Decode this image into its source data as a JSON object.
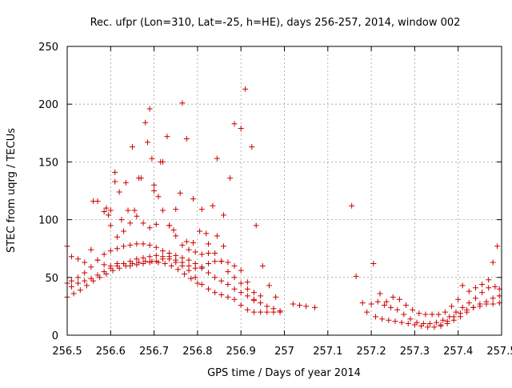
{
  "chart_data": {
    "type": "scatter",
    "title": "Rec. ufpr (Lon=310, Lat=-25, h=HE), days 256-257, 2014, window 002",
    "xlabel": "GPS time / Days of year 2014",
    "ylabel": "STEC from uqrg / TECUs",
    "xlim": [
      256.5,
      257.5
    ],
    "ylim": [
      0,
      250
    ],
    "xticks": [
      256.5,
      256.6,
      256.7,
      256.8,
      256.9,
      257,
      257.1,
      257.2,
      257.3,
      257.4,
      257.5
    ],
    "xtick_labels": [
      "256.5",
      "256.6",
      "256.7",
      "256.8",
      "256.9",
      "257",
      "257.1",
      "257.2",
      "257.3",
      "257.4",
      "257.5"
    ],
    "yticks": [
      0,
      50,
      100,
      150,
      200,
      250
    ],
    "ytick_labels": [
      "0",
      "50",
      "100",
      "150",
      "200",
      "250"
    ],
    "grid": true,
    "legend": "none",
    "marker": "plus",
    "color": "#cc0000",
    "series": [
      {
        "values": [
          [
            256.5,
            77
          ],
          [
            256.51,
            68
          ],
          [
            256.525,
            66
          ],
          [
            256.54,
            63
          ],
          [
            256.555,
            74
          ],
          [
            256.57,
            65
          ],
          [
            256.585,
            61
          ],
          [
            256.6,
            60
          ],
          [
            256.615,
            62
          ],
          [
            256.63,
            62
          ],
          [
            256.645,
            60
          ],
          [
            256.66,
            61
          ],
          [
            256.675,
            62
          ],
          [
            256.69,
            63
          ],
          [
            256.705,
            64
          ],
          [
            256.72,
            66
          ],
          [
            256.735,
            68
          ],
          [
            256.75,
            65
          ],
          [
            256.765,
            63
          ],
          [
            256.78,
            60
          ],
          [
            256.795,
            58
          ],
          [
            256.81,
            59
          ],
          [
            256.825,
            62
          ],
          [
            256.84,
            64
          ],
          [
            256.855,
            64
          ],
          [
            256.87,
            63
          ],
          [
            256.885,
            60
          ],
          [
            256.9,
            56
          ],
          [
            256.915,
            46
          ],
          [
            256.93,
            30
          ]
        ]
      },
      {
        "values": [
          [
            256.5,
            45
          ],
          [
            256.51,
            42
          ],
          [
            256.525,
            45
          ],
          [
            256.54,
            47
          ],
          [
            256.555,
            49
          ],
          [
            256.57,
            52
          ],
          [
            256.585,
            55
          ],
          [
            256.6,
            58
          ],
          [
            256.615,
            60
          ],
          [
            256.63,
            62
          ],
          [
            256.645,
            64
          ],
          [
            256.66,
            66
          ],
          [
            256.675,
            67
          ],
          [
            256.69,
            68
          ],
          [
            256.705,
            69
          ],
          [
            256.72,
            68
          ],
          [
            256.735,
            66
          ],
          [
            256.75,
            63
          ],
          [
            256.765,
            60
          ],
          [
            256.78,
            56
          ],
          [
            256.795,
            50
          ],
          [
            256.81,
            44
          ],
          [
            256.825,
            40
          ],
          [
            256.84,
            37
          ],
          [
            256.855,
            35
          ],
          [
            256.87,
            33
          ],
          [
            256.885,
            31
          ],
          [
            256.9,
            26
          ]
        ]
      },
      {
        "values": [
          [
            256.5,
            33
          ],
          [
            256.515,
            36
          ],
          [
            256.53,
            39
          ],
          [
            256.545,
            43
          ],
          [
            256.56,
            47
          ],
          [
            256.575,
            50
          ],
          [
            256.59,
            53
          ],
          [
            256.605,
            56
          ],
          [
            256.62,
            58
          ],
          [
            256.635,
            60
          ],
          [
            256.65,
            62
          ],
          [
            256.665,
            63
          ],
          [
            256.68,
            64
          ],
          [
            256.695,
            64
          ],
          [
            256.71,
            63
          ],
          [
            256.725,
            62
          ],
          [
            256.74,
            60
          ],
          [
            256.755,
            57
          ],
          [
            256.77,
            53
          ],
          [
            256.785,
            49
          ],
          [
            256.8,
            45
          ]
        ]
      },
      {
        "values": [
          [
            256.51,
            47
          ],
          [
            256.525,
            50
          ],
          [
            256.54,
            54
          ],
          [
            256.555,
            59
          ],
          [
            256.57,
            65
          ],
          [
            256.585,
            70
          ],
          [
            256.6,
            73
          ],
          [
            256.615,
            75
          ],
          [
            256.63,
            77
          ],
          [
            256.645,
            78
          ],
          [
            256.66,
            79
          ],
          [
            256.675,
            79
          ],
          [
            256.69,
            78
          ],
          [
            256.705,
            76
          ],
          [
            256.72,
            73
          ],
          [
            256.735,
            71
          ],
          [
            256.75,
            69
          ],
          [
            256.765,
            67
          ],
          [
            256.78,
            65
          ],
          [
            256.795,
            62
          ],
          [
            256.81,
            58
          ],
          [
            256.825,
            54
          ],
          [
            256.84,
            50
          ],
          [
            256.855,
            47
          ],
          [
            256.87,
            44
          ],
          [
            256.885,
            40
          ],
          [
            256.9,
            37
          ],
          [
            256.915,
            34
          ],
          [
            256.93,
            31
          ],
          [
            256.945,
            28
          ],
          [
            256.96,
            25
          ],
          [
            256.975,
            23
          ],
          [
            256.99,
            21
          ]
        ]
      },
      {
        "values": [
          [
            256.56,
            116
          ],
          [
            256.57,
            116
          ],
          [
            256.585,
            107
          ],
          [
            256.6,
            95
          ],
          [
            256.615,
            85
          ],
          [
            256.63,
            90
          ],
          [
            256.645,
            97
          ],
          [
            256.66,
            103
          ],
          [
            256.675,
            97
          ],
          [
            256.69,
            93
          ],
          [
            256.705,
            96
          ],
          [
            256.72,
            108
          ],
          [
            256.735,
            95
          ],
          [
            256.75,
            86
          ],
          [
            256.765,
            78
          ],
          [
            256.78,
            74
          ],
          [
            256.795,
            72
          ],
          [
            256.81,
            70
          ],
          [
            256.825,
            71
          ],
          [
            256.84,
            71
          ],
          [
            256.855,
            64
          ],
          [
            256.87,
            55
          ],
          [
            256.885,
            50
          ],
          [
            256.9,
            45
          ],
          [
            256.915,
            40
          ],
          [
            256.93,
            37
          ],
          [
            256.945,
            34
          ]
        ]
      },
      {
        "values": [
          [
            256.59,
            110
          ],
          [
            256.6,
            108
          ],
          [
            256.61,
            141
          ],
          [
            256.62,
            124
          ],
          [
            256.635,
            132
          ],
          [
            256.65,
            163
          ],
          [
            256.665,
            136
          ],
          [
            256.68,
            184
          ],
          [
            256.69,
            196
          ],
          [
            256.7,
            125
          ],
          [
            256.715,
            150
          ],
          [
            256.73,
            172
          ],
          [
            256.75,
            109
          ],
          [
            256.765,
            201
          ],
          [
            256.775,
            170
          ],
          [
            256.79,
            118
          ],
          [
            256.805,
            90
          ],
          [
            256.82,
            88
          ],
          [
            256.835,
            112
          ],
          [
            256.845,
            153
          ],
          [
            256.86,
            104
          ],
          [
            256.875,
            136
          ],
          [
            256.885,
            183
          ],
          [
            256.9,
            179
          ],
          [
            256.91,
            213
          ],
          [
            256.925,
            163
          ],
          [
            256.935,
            95
          ],
          [
            256.95,
            60
          ],
          [
            256.965,
            43
          ],
          [
            256.98,
            33
          ]
        ]
      },
      {
        "values": [
          [
            256.595,
            104
          ],
          [
            256.61,
            133
          ],
          [
            256.625,
            100
          ],
          [
            256.64,
            108
          ],
          [
            256.655,
            108
          ],
          [
            256.67,
            136
          ],
          [
            256.685,
            167
          ],
          [
            256.695,
            153
          ],
          [
            256.7,
            130
          ],
          [
            256.71,
            120
          ],
          [
            256.72,
            150
          ],
          [
            256.735,
            95
          ],
          [
            256.745,
            91
          ],
          [
            256.76,
            123
          ],
          [
            256.775,
            81
          ],
          [
            256.79,
            80
          ],
          [
            256.81,
            109
          ],
          [
            256.825,
            79
          ],
          [
            256.845,
            86
          ],
          [
            256.86,
            77
          ]
        ]
      },
      {
        "values": [
          [
            256.915,
            22
          ],
          [
            256.93,
            20
          ],
          [
            256.945,
            20
          ],
          [
            256.96,
            20
          ],
          [
            256.975,
            20
          ],
          [
            256.99,
            20
          ],
          [
            257.02,
            27
          ],
          [
            257.035,
            26
          ],
          [
            257.05,
            25
          ],
          [
            257.07,
            24
          ]
        ]
      },
      {
        "values": [
          [
            257.155,
            112
          ],
          [
            257.165,
            51
          ],
          [
            257.18,
            28
          ],
          [
            257.19,
            20
          ],
          [
            257.205,
            62
          ],
          [
            257.22,
            36
          ],
          [
            257.235,
            29
          ],
          [
            257.25,
            33
          ],
          [
            257.265,
            31
          ],
          [
            257.28,
            26
          ],
          [
            257.295,
            22
          ],
          [
            257.31,
            19
          ],
          [
            257.325,
            18
          ],
          [
            257.34,
            18
          ],
          [
            257.355,
            18
          ],
          [
            257.37,
            20
          ],
          [
            257.385,
            25
          ],
          [
            257.4,
            31
          ],
          [
            257.41,
            43
          ],
          [
            257.425,
            38
          ],
          [
            257.44,
            41
          ],
          [
            257.455,
            44
          ],
          [
            257.47,
            48
          ],
          [
            257.48,
            63
          ],
          [
            257.49,
            77
          ]
        ]
      },
      {
        "values": [
          [
            257.2,
            27
          ],
          [
            257.215,
            29
          ],
          [
            257.23,
            26
          ],
          [
            257.245,
            24
          ],
          [
            257.26,
            22
          ],
          [
            257.275,
            18
          ],
          [
            257.29,
            14
          ],
          [
            257.305,
            11
          ],
          [
            257.32,
            10
          ],
          [
            257.335,
            10
          ],
          [
            257.35,
            11
          ],
          [
            257.365,
            13
          ],
          [
            257.38,
            16
          ],
          [
            257.395,
            20
          ],
          [
            257.41,
            24
          ],
          [
            257.425,
            28
          ],
          [
            257.44,
            32
          ],
          [
            257.455,
            37
          ],
          [
            257.47,
            41
          ],
          [
            257.485,
            42
          ],
          [
            257.495,
            40
          ]
        ]
      },
      {
        "values": [
          [
            257.21,
            16
          ],
          [
            257.225,
            14
          ],
          [
            257.24,
            13
          ],
          [
            257.255,
            12
          ],
          [
            257.27,
            11
          ],
          [
            257.285,
            10
          ],
          [
            257.3,
            9
          ],
          [
            257.315,
            8
          ],
          [
            257.33,
            7
          ],
          [
            257.345,
            7
          ],
          [
            257.36,
            8
          ],
          [
            257.375,
            10
          ],
          [
            257.39,
            13
          ],
          [
            257.405,
            16
          ],
          [
            257.42,
            20
          ],
          [
            257.435,
            24
          ],
          [
            257.45,
            27
          ],
          [
            257.465,
            29
          ],
          [
            257.48,
            32
          ],
          [
            257.495,
            34
          ]
        ]
      },
      {
        "values": [
          [
            257.36,
            9
          ],
          [
            257.375,
            12
          ],
          [
            257.39,
            16
          ],
          [
            257.405,
            19
          ],
          [
            257.42,
            22
          ],
          [
            257.435,
            24
          ],
          [
            257.45,
            25
          ],
          [
            257.465,
            27
          ],
          [
            257.48,
            27
          ],
          [
            257.495,
            28
          ]
        ]
      }
    ]
  }
}
